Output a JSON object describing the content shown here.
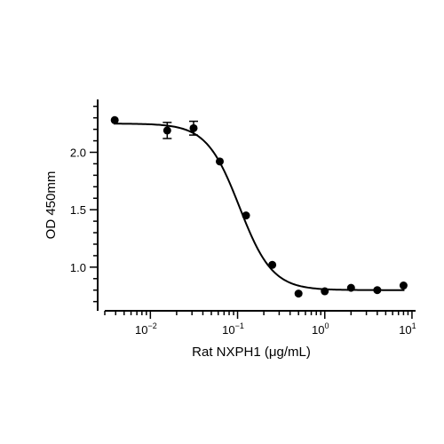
{
  "chart_data": {
    "type": "scatter",
    "title": "",
    "xlabel": "Rat NXPH1 (μg/mL)",
    "ylabel": "OD 450mm",
    "x_scale": "log",
    "xlim": [
      0.003,
      11
    ],
    "ylim": [
      0.62,
      2.46
    ],
    "x_ticks": [
      {
        "value": 0.01,
        "base": "10",
        "exp": "-2"
      },
      {
        "value": 0.1,
        "base": "10",
        "exp": "-1"
      },
      {
        "value": 1,
        "base": "10",
        "exp": "0"
      },
      {
        "value": 10,
        "base": "10",
        "exp": "1"
      }
    ],
    "y_ticks": [
      {
        "value": 1.0,
        "label": "1.0"
      },
      {
        "value": 1.5,
        "label": "1.5"
      },
      {
        "value": 2.0,
        "label": "2.0"
      }
    ],
    "grid": false,
    "series": [
      {
        "points": [
          {
            "x": 0.0039,
            "y": 2.28,
            "err": 0
          },
          {
            "x": 0.0156,
            "y": 2.19,
            "err": 0.07
          },
          {
            "x": 0.0313,
            "y": 2.21,
            "err": 0.06
          },
          {
            "x": 0.0625,
            "y": 1.92,
            "err": 0
          },
          {
            "x": 0.125,
            "y": 1.45,
            "err": 0
          },
          {
            "x": 0.25,
            "y": 1.02,
            "err": 0
          },
          {
            "x": 0.5,
            "y": 0.77,
            "err": 0
          },
          {
            "x": 1.0,
            "y": 0.79,
            "err": 0
          },
          {
            "x": 2.0,
            "y": 0.82,
            "err": 0
          },
          {
            "x": 4.0,
            "y": 0.8,
            "err": 0
          },
          {
            "x": 8.0,
            "y": 0.84,
            "err": 0
          }
        ]
      }
    ],
    "fit_curve": {
      "model": "4PL",
      "top": 2.25,
      "bottom": 0.8,
      "ec50": 0.105,
      "hill": 2.3
    }
  }
}
